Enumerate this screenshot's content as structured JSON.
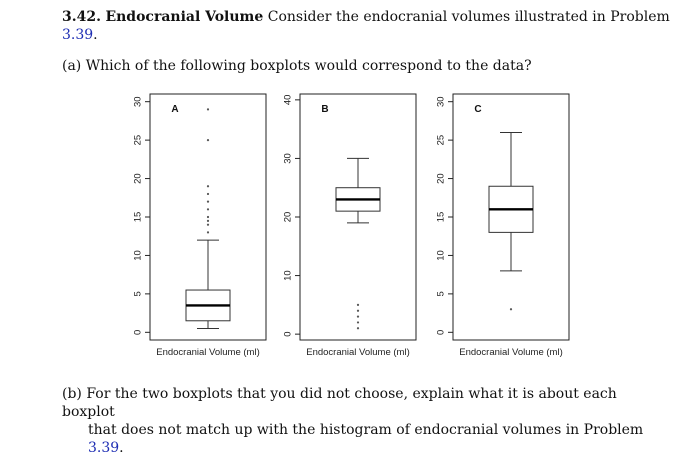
{
  "problem": {
    "number": "3.42.",
    "title": "Endocranial Volume",
    "text": "Consider the endocranial volumes illustrated in Problem",
    "ref": "3.39",
    "end": "."
  },
  "part_a": {
    "label": "(a)",
    "text": "Which of the following boxplots would correspond to the data?"
  },
  "part_b": {
    "label": "(b)",
    "line1": "For the two boxplots that you did not choose, explain what it is about each boxplot",
    "line2": "that does not match up with the histogram of endocranial volumes in Problem",
    "ref": "3.39",
    "end": "."
  },
  "chart_data": [
    {
      "type": "boxplot",
      "panel": "A",
      "xlabel": "Endocranial Volume (ml)",
      "ylim": [
        -1,
        31
      ],
      "yticks": [
        0,
        5,
        10,
        15,
        20,
        25,
        30
      ],
      "whisker_low": 0.5,
      "q1": 1.5,
      "median": 3.5,
      "q3": 5.5,
      "whisker_high": 12,
      "outliers": [
        13,
        14,
        14.5,
        15,
        16,
        17,
        18,
        19,
        25,
        29
      ]
    },
    {
      "type": "boxplot",
      "panel": "B",
      "xlabel": "Endocranial Volume (ml)",
      "ylim": [
        -1,
        41
      ],
      "yticks": [
        0,
        10,
        20,
        30,
        40
      ],
      "whisker_low": 19,
      "q1": 21,
      "median": 23,
      "q3": 25,
      "whisker_high": 30,
      "outliers": [
        1,
        2,
        3,
        4,
        5
      ]
    },
    {
      "type": "boxplot",
      "panel": "C",
      "xlabel": "Endocranial Volume (ml)",
      "ylim": [
        -1,
        31
      ],
      "yticks": [
        0,
        5,
        10,
        15,
        20,
        25,
        30
      ],
      "whisker_low": 8,
      "q1": 13,
      "median": 16,
      "q3": 19,
      "whisker_high": 26,
      "outliers": [
        3
      ]
    }
  ]
}
